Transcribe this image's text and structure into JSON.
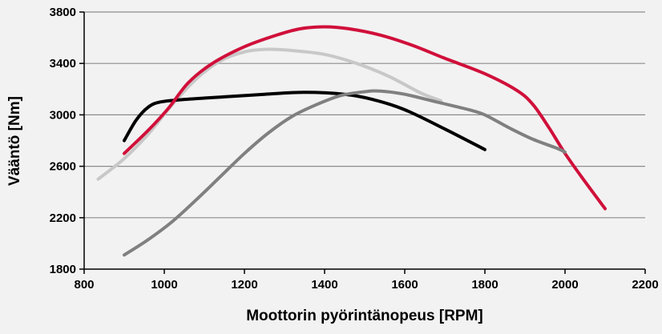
{
  "chart_data": {
    "type": "line",
    "title": "",
    "xlabel": "Moottorin pyörintänopeus [RPM]",
    "ylabel": "Vääntö [Nm]",
    "xlim": [
      800,
      2200
    ],
    "ylim": [
      1800,
      3800
    ],
    "x_ticks": [
      800,
      1000,
      1200,
      1400,
      1600,
      1800,
      2000,
      2200
    ],
    "y_ticks": [
      1800,
      2200,
      2600,
      3000,
      3400,
      3800
    ],
    "grid": true,
    "legend": "none",
    "background": "#f2f2f2",
    "series": [
      {
        "color": "#c8c8c8",
        "points": [
          [
            835,
            2500
          ],
          [
            900,
            2660
          ],
          [
            960,
            2850
          ],
          [
            1020,
            3080
          ],
          [
            1080,
            3280
          ],
          [
            1140,
            3420
          ],
          [
            1200,
            3490
          ],
          [
            1260,
            3510
          ],
          [
            1320,
            3500
          ],
          [
            1400,
            3470
          ],
          [
            1480,
            3400
          ],
          [
            1560,
            3300
          ],
          [
            1640,
            3170
          ],
          [
            1690,
            3110
          ]
        ]
      },
      {
        "color": "#000000",
        "points": [
          [
            900,
            2800
          ],
          [
            930,
            2960
          ],
          [
            960,
            3060
          ],
          [
            990,
            3100
          ],
          [
            1050,
            3120
          ],
          [
            1150,
            3140
          ],
          [
            1250,
            3160
          ],
          [
            1350,
            3175
          ],
          [
            1450,
            3160
          ],
          [
            1520,
            3120
          ],
          [
            1600,
            3040
          ],
          [
            1700,
            2890
          ],
          [
            1800,
            2730
          ]
        ]
      },
      {
        "color": "#d0103a",
        "points": [
          [
            900,
            2700
          ],
          [
            960,
            2880
          ],
          [
            1010,
            3050
          ],
          [
            1060,
            3250
          ],
          [
            1120,
            3400
          ],
          [
            1200,
            3530
          ],
          [
            1280,
            3620
          ],
          [
            1340,
            3670
          ],
          [
            1400,
            3685
          ],
          [
            1460,
            3670
          ],
          [
            1540,
            3620
          ],
          [
            1620,
            3540
          ],
          [
            1700,
            3440
          ],
          [
            1800,
            3320
          ],
          [
            1880,
            3190
          ],
          [
            1920,
            3080
          ],
          [
            1960,
            2900
          ],
          [
            2000,
            2700
          ],
          [
            2050,
            2480
          ],
          [
            2100,
            2270
          ]
        ]
      },
      {
        "color": "#808080",
        "points": [
          [
            900,
            1910
          ],
          [
            960,
            2030
          ],
          [
            1020,
            2170
          ],
          [
            1080,
            2340
          ],
          [
            1140,
            2520
          ],
          [
            1200,
            2700
          ],
          [
            1260,
            2860
          ],
          [
            1320,
            2990
          ],
          [
            1380,
            3080
          ],
          [
            1440,
            3150
          ],
          [
            1500,
            3180
          ],
          [
            1540,
            3185
          ],
          [
            1600,
            3160
          ],
          [
            1680,
            3100
          ],
          [
            1760,
            3040
          ],
          [
            1800,
            3000
          ],
          [
            1860,
            2900
          ],
          [
            1920,
            2810
          ],
          [
            1980,
            2740
          ],
          [
            2000,
            2710
          ]
        ]
      }
    ]
  }
}
